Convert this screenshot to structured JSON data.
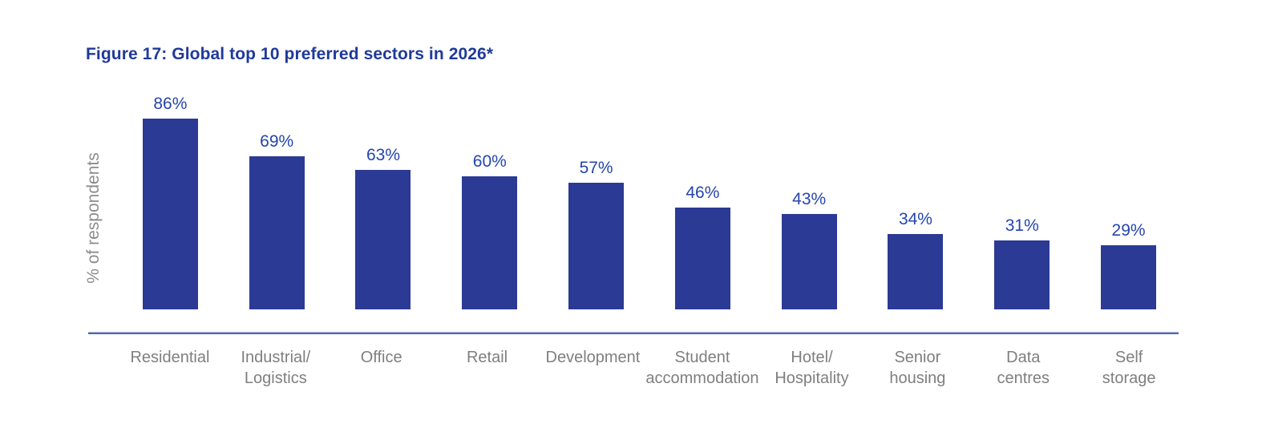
{
  "figure": {
    "title": "Figure 17: Global top 10 preferred sectors in 2026*"
  },
  "chart_data": {
    "type": "bar",
    "title": "Figure 17: Global top 10 preferred sectors in 2026*",
    "xlabel": "",
    "ylabel": "% of respondents",
    "categories": [
      "Residential",
      "Industrial/\nLogistics",
      "Office",
      "Retail",
      "Development",
      "Student\naccommodation",
      "Hotel/\nHospitality",
      "Senior\nhousing",
      "Data\ncentres",
      "Self\nstorage"
    ],
    "values": [
      86,
      69,
      63,
      60,
      57,
      46,
      43,
      34,
      31,
      29
    ],
    "value_labels": [
      "86%",
      "69%",
      "63%",
      "60%",
      "57%",
      "46%",
      "43%",
      "34%",
      "31%",
      "29%"
    ],
    "ylim": [
      0,
      100
    ],
    "grid": false,
    "legend": null,
    "layout": {
      "bar_value_labels_position": "above-bars",
      "y_axis_ticks": "none",
      "baseline": "single horizontal line below bars"
    },
    "colors": {
      "bar": "#2b3a94",
      "value_label": "#2545ad",
      "title": "#1f3a99",
      "axis_line": "#5068b0",
      "category_label": "#7f7f7f",
      "ylabel": "#8c8c8c",
      "background": "#ffffff"
    }
  }
}
